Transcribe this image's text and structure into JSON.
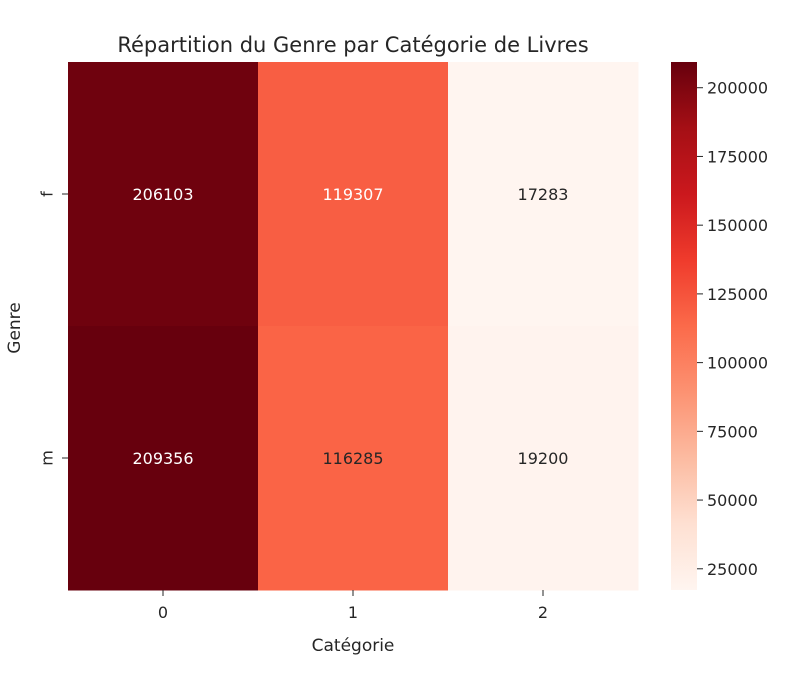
{
  "chart_data": {
    "type": "heatmap",
    "title": "Répartition du Genre par Catégorie de Livres",
    "xlabel": "Catégorie",
    "ylabel": "Genre",
    "x_categories": [
      "0",
      "1",
      "2"
    ],
    "y_categories": [
      "f",
      "m"
    ],
    "values": [
      [
        206103,
        119307,
        17283
      ],
      [
        209356,
        116285,
        19200
      ]
    ],
    "colormap": "Reds",
    "colorbar": {
      "min": 17283,
      "max": 209356,
      "ticks": [
        "25000",
        "50000",
        "75000",
        "100000",
        "125000",
        "150000",
        "175000",
        "200000"
      ]
    },
    "grid": false
  }
}
